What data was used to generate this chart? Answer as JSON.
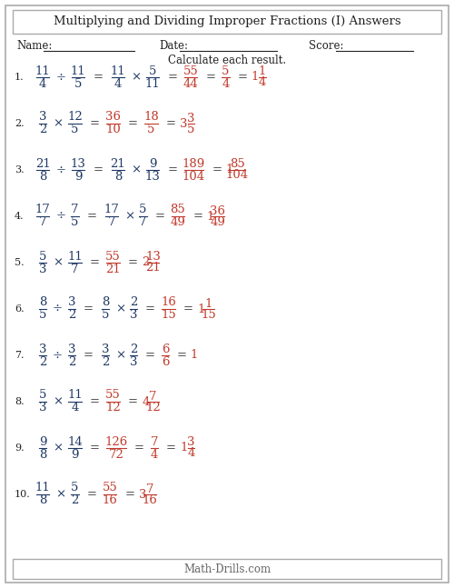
{
  "title": "Multiplying and Dividing Improper Fractions (I) Answers",
  "instruction": "Calculate each result.",
  "name_label": "Name:",
  "date_label": "Date:",
  "score_label": "Score:",
  "footer": "Math-Drills.com",
  "bg_color": "#ffffff",
  "blue_color": "#1f3864",
  "red_color": "#c0392b",
  "problems": [
    {
      "num": "1.",
      "op": "div",
      "a_num": "11",
      "a_den": "4",
      "b_num": "11",
      "b_den": "5",
      "step2_num": "11",
      "step2_den": "4",
      "step2b_num": "5",
      "step2b_den": "11",
      "prod_num": "55",
      "prod_den": "44",
      "simp_num": "5",
      "simp_den": "4",
      "mixed_whole": "1",
      "mixed_num": "1",
      "mixed_den": "4",
      "show_step2": true,
      "show_simp": true,
      "show_mixed": true,
      "mixed_is_whole": false
    },
    {
      "num": "2.",
      "op": "mul",
      "a_num": "3",
      "a_den": "2",
      "b_num": "12",
      "b_den": "5",
      "prod_num": "36",
      "prod_den": "10",
      "simp_num": "18",
      "simp_den": "5",
      "mixed_whole": "3",
      "mixed_num": "3",
      "mixed_den": "5",
      "show_step2": false,
      "show_simp": true,
      "show_mixed": true,
      "mixed_is_whole": false
    },
    {
      "num": "3.",
      "op": "div",
      "a_num": "21",
      "a_den": "8",
      "b_num": "13",
      "b_den": "9",
      "step2_num": "21",
      "step2_den": "8",
      "step2b_num": "9",
      "step2b_den": "13",
      "prod_num": "189",
      "prod_den": "104",
      "simp_num": "",
      "simp_den": "",
      "mixed_whole": "1",
      "mixed_num": "85",
      "mixed_den": "104",
      "show_step2": true,
      "show_simp": false,
      "show_mixed": true,
      "mixed_is_whole": false
    },
    {
      "num": "4.",
      "op": "div",
      "a_num": "17",
      "a_den": "7",
      "b_num": "7",
      "b_den": "5",
      "step2_num": "17",
      "step2_den": "7",
      "step2b_num": "5",
      "step2b_den": "7",
      "prod_num": "85",
      "prod_den": "49",
      "simp_num": "",
      "simp_den": "",
      "mixed_whole": "1",
      "mixed_num": "36",
      "mixed_den": "49",
      "show_step2": true,
      "show_simp": false,
      "show_mixed": true,
      "mixed_is_whole": false
    },
    {
      "num": "5.",
      "op": "mul",
      "a_num": "5",
      "a_den": "3",
      "b_num": "11",
      "b_den": "7",
      "prod_num": "55",
      "prod_den": "21",
      "simp_num": "",
      "simp_den": "",
      "mixed_whole": "2",
      "mixed_num": "13",
      "mixed_den": "21",
      "show_step2": false,
      "show_simp": false,
      "show_mixed": true,
      "mixed_is_whole": false
    },
    {
      "num": "6.",
      "op": "div",
      "a_num": "8",
      "a_den": "5",
      "b_num": "3",
      "b_den": "2",
      "step2_num": "8",
      "step2_den": "5",
      "step2b_num": "2",
      "step2b_den": "3",
      "prod_num": "16",
      "prod_den": "15",
      "simp_num": "",
      "simp_den": "",
      "mixed_whole": "1",
      "mixed_num": "1",
      "mixed_den": "15",
      "show_step2": true,
      "show_simp": false,
      "show_mixed": true,
      "mixed_is_whole": false
    },
    {
      "num": "7.",
      "op": "div",
      "a_num": "3",
      "a_den": "2",
      "b_num": "3",
      "b_den": "2",
      "step2_num": "3",
      "step2_den": "2",
      "step2b_num": "2",
      "step2b_den": "3",
      "prod_num": "6",
      "prod_den": "6",
      "simp_num": "",
      "simp_den": "",
      "mixed_whole": "1",
      "mixed_num": "",
      "mixed_den": "",
      "show_step2": true,
      "show_simp": false,
      "show_mixed": true,
      "mixed_is_whole": true
    },
    {
      "num": "8.",
      "op": "mul",
      "a_num": "5",
      "a_den": "3",
      "b_num": "11",
      "b_den": "4",
      "prod_num": "55",
      "prod_den": "12",
      "simp_num": "",
      "simp_den": "",
      "mixed_whole": "4",
      "mixed_num": "7",
      "mixed_den": "12",
      "show_step2": false,
      "show_simp": false,
      "show_mixed": true,
      "mixed_is_whole": false
    },
    {
      "num": "9.",
      "op": "mul",
      "a_num": "9",
      "a_den": "8",
      "b_num": "14",
      "b_den": "9",
      "prod_num": "126",
      "prod_den": "72",
      "simp_num": "7",
      "simp_den": "4",
      "mixed_whole": "1",
      "mixed_num": "3",
      "mixed_den": "4",
      "show_step2": false,
      "show_simp": true,
      "show_mixed": true,
      "mixed_is_whole": false
    },
    {
      "num": "10.",
      "op": "mul",
      "a_num": "11",
      "a_den": "8",
      "b_num": "5",
      "b_den": "2",
      "prod_num": "55",
      "prod_den": "16",
      "simp_num": "",
      "simp_den": "",
      "mixed_whole": "3",
      "mixed_num": "7",
      "mixed_den": "16",
      "show_step2": false,
      "show_simp": false,
      "show_mixed": true,
      "mixed_is_whole": false
    }
  ]
}
